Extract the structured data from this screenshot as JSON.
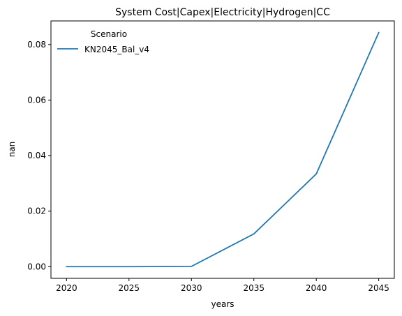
{
  "chart_data": {
    "type": "line",
    "title": "System Cost|Capex|Electricity|Hydrogen|CC",
    "xlabel": "years",
    "ylabel": "nan",
    "x": [
      2020,
      2025,
      2030,
      2035,
      2040,
      2045
    ],
    "xticks": [
      "2020",
      "2025",
      "2030",
      "2035",
      "2040",
      "2045"
    ],
    "yticks": [
      "0.00",
      "0.02",
      "0.04",
      "0.06",
      "0.08"
    ],
    "xlim": [
      2018.75,
      2046.25
    ],
    "ylim": [
      -0.0042,
      0.0885
    ],
    "grid": false,
    "legend": {
      "title": "Scenario",
      "position": "upper-left"
    },
    "series": [
      {
        "name": "KN2045_Bal_v4",
        "color": "#1f77b4",
        "values": [
          0.0,
          0.0,
          0.0001,
          0.0118,
          0.0334,
          0.0843
        ]
      }
    ]
  }
}
